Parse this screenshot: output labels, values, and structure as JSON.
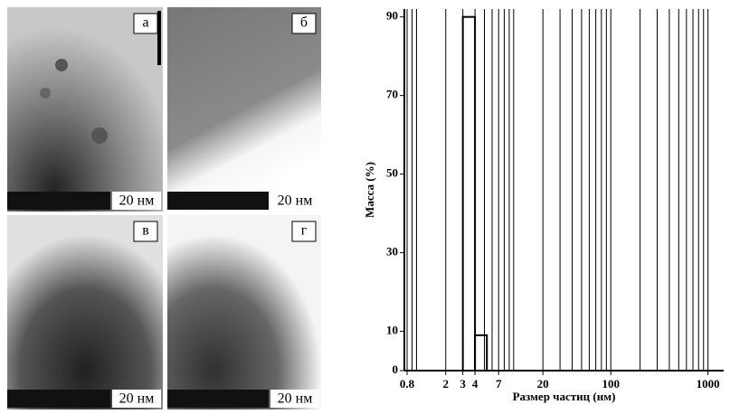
{
  "images": [
    {
      "label": "а",
      "scale": "20 нм"
    },
    {
      "label": "б",
      "scale": "20 нм"
    },
    {
      "label": "в",
      "scale": "20 нм"
    },
    {
      "label": "г",
      "scale": "20 нм"
    }
  ],
  "chart_data": {
    "type": "histogram",
    "xlabel": "Размер частиц (нм)",
    "ylabel": "Масса (%)",
    "bins": [
      3,
      4,
      5.3
    ],
    "values": [
      90,
      9
    ],
    "color": "#000000",
    "xscale": "log",
    "xlim": [
      0.75,
      1450
    ],
    "ylim": [
      0,
      92
    ],
    "xticks": [
      0.8,
      2,
      3,
      4,
      7,
      20,
      100,
      1000
    ],
    "yticks": [
      0,
      10,
      30,
      50,
      70,
      90
    ],
    "xgrid": [
      0.8,
      0.9,
      1,
      2,
      3,
      4,
      5,
      6,
      7,
      8,
      9,
      10,
      20,
      30,
      40,
      50,
      60,
      70,
      80,
      90,
      100,
      200,
      300,
      400,
      500,
      600,
      700,
      800,
      900,
      1000
    ]
  }
}
